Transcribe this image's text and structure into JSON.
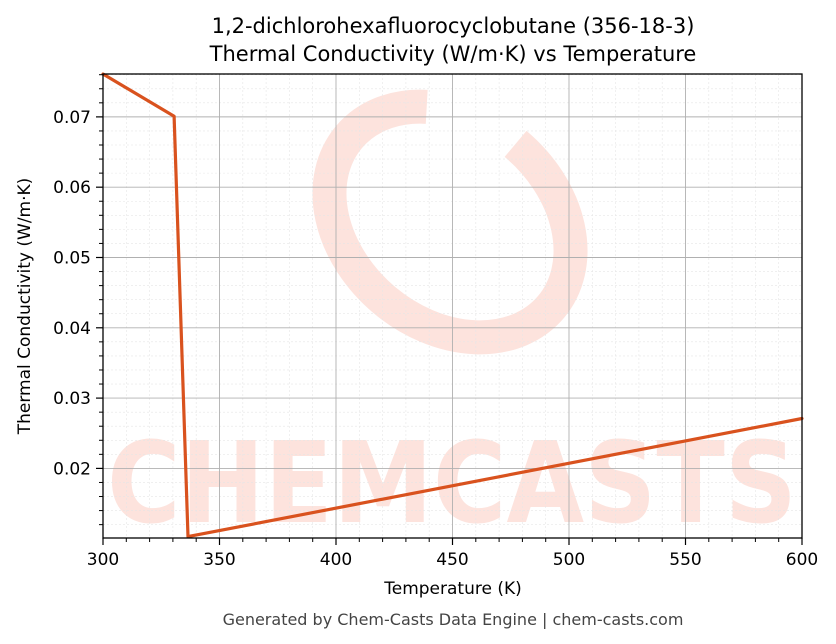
{
  "chart_data": {
    "type": "line",
    "title_line1": "1,2-dichlorohexafluorocyclobutane (356-18-3)",
    "title_line2": "Thermal Conductivity (W/m·K) vs Temperature",
    "xlabel": "Temperature (K)",
    "ylabel": "Thermal Conductivity (W/m·K)",
    "xlim": [
      300,
      600
    ],
    "ylim": [
      0.0101,
      0.0761
    ],
    "x_ticks": [
      300,
      350,
      400,
      450,
      500,
      550,
      600
    ],
    "y_ticks": [
      0.02,
      0.03,
      0.04,
      0.05,
      0.06,
      0.07
    ],
    "y_tick_labels": [
      "0.02",
      "0.03",
      "0.04",
      "0.05",
      "0.06",
      "0.07"
    ],
    "grid": true,
    "series": [
      {
        "color": "#d9521e",
        "x": [
          300,
          330.5,
          336.5,
          600
        ],
        "y": [
          0.0761,
          0.0701,
          0.0103,
          0.0271
        ]
      }
    ]
  },
  "watermark": {
    "text": "CHEMCASTS",
    "color": "#fde3dd"
  },
  "footer": "Generated by Chem-Casts Data Engine | chem-casts.com"
}
